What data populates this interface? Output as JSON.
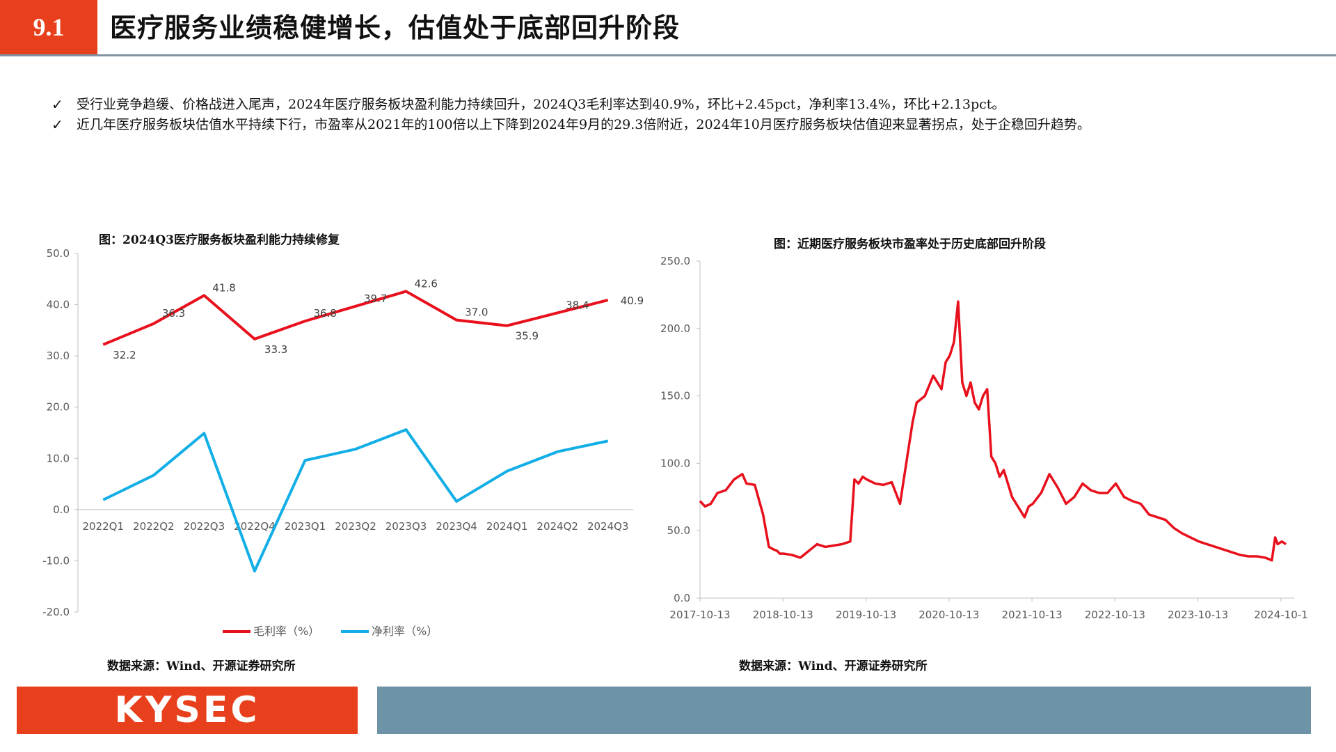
{
  "header": {
    "section_number": "9.1",
    "title": "医疗服务业绩稳健增长，估值处于底部回升阶段"
  },
  "bullets": [
    "受行业竞争趋缓、价格战进入尾声，2024年医疗服务板块盈利能力持续回升，2024Q3毛利率达到40.9%，环比+2.45pct，净利率13.4%，环比+2.13pct。",
    "近几年医疗服务板块估值水平持续下行，市盈率从2021年的100倍以上下降到2024年9月的29.3倍附近，2024年10月医疗服务板块估值迎来显著拐点，处于企稳回升趋势。"
  ],
  "colors": {
    "accent": "#e8401c",
    "red_series": "#e8101c",
    "blue_series": "#12aee6",
    "footer_bar": "#6f93a6"
  },
  "footer": {
    "logo_text": "KYSEC"
  },
  "left_chart": {
    "title": "图：2024Q3医疗服务板块盈利能力持续修复",
    "source": "数据来源：Wind、开源证券研究所"
  },
  "right_chart": {
    "title": "图：近期医疗服务板块市盈率处于历史底部回升阶段",
    "source": "数据来源：Wind、开源证券研究所"
  },
  "chart_data": [
    {
      "type": "line",
      "title": "图：2024Q3医疗服务板块盈利能力持续修复",
      "categories": [
        "2022Q1",
        "2022Q2",
        "2022Q3",
        "2022Q4",
        "2023Q1",
        "2023Q2",
        "2023Q3",
        "2023Q4",
        "2024Q1",
        "2024Q2",
        "2024Q3"
      ],
      "ylim": [
        -20,
        50
      ],
      "yticks": [
        "50.0",
        "40.0",
        "30.0",
        "20.0",
        "10.0",
        "0.0",
        "-10.0",
        "-20.0"
      ],
      "legend": "bottom",
      "series": [
        {
          "name": "毛利率（%）",
          "color": "#e8101c",
          "labeled": true,
          "values": [
            32.2,
            36.3,
            41.8,
            33.3,
            36.8,
            39.7,
            42.6,
            37.0,
            35.9,
            38.4,
            40.9
          ],
          "labels": [
            "32.2",
            "36.3",
            "41.8",
            "33.3",
            "36.8",
            "39.7",
            "42.6",
            "37.0",
            "35.9",
            "38.4",
            "40.9"
          ]
        },
        {
          "name": "净利率（%）",
          "color": "#12aee6",
          "labeled": false,
          "values": [
            1.9,
            6.7,
            14.9,
            -12.0,
            9.6,
            11.8,
            15.6,
            1.6,
            7.5,
            11.3,
            13.4
          ]
        }
      ]
    },
    {
      "type": "line",
      "title": "图：近期医疗服务板块市盈率处于历史底部回升阶段",
      "xlabels": [
        "2017-10-13",
        "2018-10-13",
        "2019-10-13",
        "2020-10-13",
        "2021-10-13",
        "2022-10-13",
        "2023-10-13",
        "2024-10-1"
      ],
      "ylim": [
        0,
        250
      ],
      "yticks": [
        "250.0",
        "200.0",
        "150.0",
        "100.0",
        "50.0",
        "0.0"
      ],
      "series": [
        {
          "color": "#e8101c",
          "x": [
            2017.79,
            2017.85,
            2017.92,
            2018.0,
            2018.1,
            2018.2,
            2018.3,
            2018.35,
            2018.45,
            2018.55,
            2018.62,
            2018.68,
            2018.72,
            2018.75,
            2018.8,
            2018.9,
            2019.0,
            2019.1,
            2019.2,
            2019.3,
            2019.4,
            2019.5,
            2019.6,
            2019.65,
            2019.7,
            2019.75,
            2019.8,
            2019.9,
            2020.0,
            2020.1,
            2020.2,
            2020.3,
            2020.35,
            2020.4,
            2020.5,
            2020.6,
            2020.7,
            2020.75,
            2020.8,
            2020.85,
            2020.9,
            2020.95,
            2021.0,
            2021.05,
            2021.1,
            2021.15,
            2021.2,
            2021.25,
            2021.3,
            2021.35,
            2021.4,
            2021.45,
            2021.5,
            2021.55,
            2021.6,
            2021.7,
            2021.75,
            2021.8,
            2021.9,
            2022.0,
            2022.1,
            2022.2,
            2022.3,
            2022.4,
            2022.5,
            2022.6,
            2022.7,
            2022.8,
            2022.9,
            2023.0,
            2023.1,
            2023.2,
            2023.3,
            2023.4,
            2023.5,
            2023.6,
            2023.7,
            2023.8,
            2023.9,
            2024.0,
            2024.1,
            2024.2,
            2024.3,
            2024.4,
            2024.5,
            2024.6,
            2024.68,
            2024.72,
            2024.75,
            2024.8,
            2024.85
          ],
          "values": [
            72,
            68,
            70,
            78,
            80,
            88,
            92,
            85,
            84,
            62,
            38,
            36,
            35,
            33,
            33,
            32,
            30,
            35,
            40,
            38,
            39,
            40,
            42,
            88,
            85,
            90,
            88,
            85,
            84,
            86,
            70,
            110,
            130,
            145,
            150,
            165,
            155,
            175,
            180,
            190,
            220,
            160,
            150,
            160,
            145,
            140,
            150,
            155,
            105,
            100,
            90,
            95,
            85,
            75,
            70,
            60,
            68,
            70,
            78,
            92,
            82,
            70,
            75,
            85,
            80,
            78,
            78,
            85,
            75,
            72,
            70,
            62,
            60,
            58,
            52,
            48,
            45,
            42,
            40,
            38,
            36,
            34,
            32,
            31,
            31,
            30,
            28,
            45,
            40,
            42,
            40
          ]
        }
      ]
    }
  ]
}
